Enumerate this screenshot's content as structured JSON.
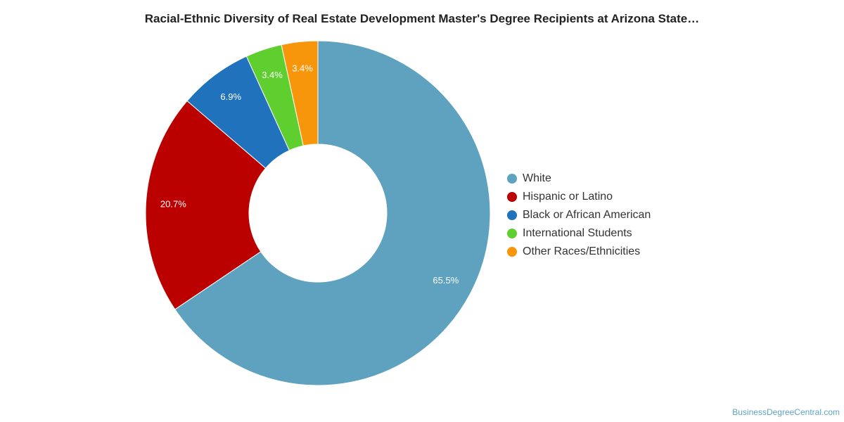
{
  "chart_data": {
    "type": "pie",
    "title": "Racial-Ethnic Diversity of Real Estate Development Master's Degree Recipients at Arizona State…",
    "donut": true,
    "legend_position": "right",
    "series": [
      {
        "name": "White",
        "value": 65.5,
        "label": "65.5%",
        "color": "#5ea2c0"
      },
      {
        "name": "Hispanic or Latino",
        "value": 20.7,
        "label": "20.7%",
        "color": "#bb0000"
      },
      {
        "name": "Black or African American",
        "value": 6.9,
        "label": "6.9%",
        "color": "#1f72bb"
      },
      {
        "name": "International Students",
        "value": 3.4,
        "label": "3.4%",
        "color": "#5ecf2e"
      },
      {
        "name": "Other Races/Ethnicities",
        "value": 3.4,
        "label": "3.4%",
        "color": "#f7960b"
      }
    ]
  },
  "credit": "BusinessDegreeCentral.com"
}
